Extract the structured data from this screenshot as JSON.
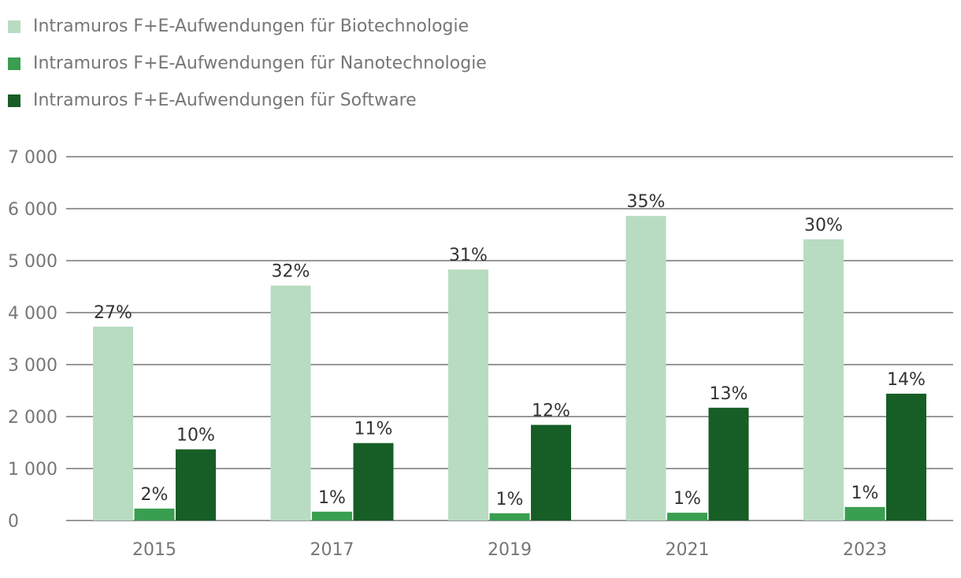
{
  "colors": {
    "grid": "#767676",
    "axis_text": "#767676",
    "label_text": "#333333"
  },
  "chart_data": {
    "type": "bar",
    "categories": [
      "2015",
      "2017",
      "2019",
      "2021",
      "2023"
    ],
    "ylim": [
      0,
      7000
    ],
    "yticks": [
      0,
      1000,
      2000,
      3000,
      4000,
      5000,
      6000,
      7000
    ],
    "ytick_labels": [
      "0",
      "1 000",
      "2 000",
      "3 000",
      "4 000",
      "5 000",
      "6 000",
      "7 000"
    ],
    "grid": true,
    "legend_position": "top-left",
    "series": [
      {
        "name": "Intramuros F+E-Aufwendungen für Biotechnologie",
        "color": "#b8dcc1",
        "values": [
          3730,
          4520,
          4830,
          5860,
          5410
        ],
        "labels": [
          "27%",
          "32%",
          "31%",
          "35%",
          "30%"
        ]
      },
      {
        "name": "Intramuros F+E-Aufwendungen für Nanotechnologie",
        "color": "#3a9e50",
        "values": [
          230,
          170,
          140,
          150,
          260
        ],
        "labels": [
          "2%",
          "1%",
          "1%",
          "1%",
          "1%"
        ]
      },
      {
        "name": "Intramuros F+E-Aufwendungen für Software",
        "color": "#165e26",
        "values": [
          1370,
          1490,
          1840,
          2170,
          2440
        ],
        "labels": [
          "10%",
          "11%",
          "12%",
          "13%",
          "14%"
        ]
      }
    ]
  }
}
